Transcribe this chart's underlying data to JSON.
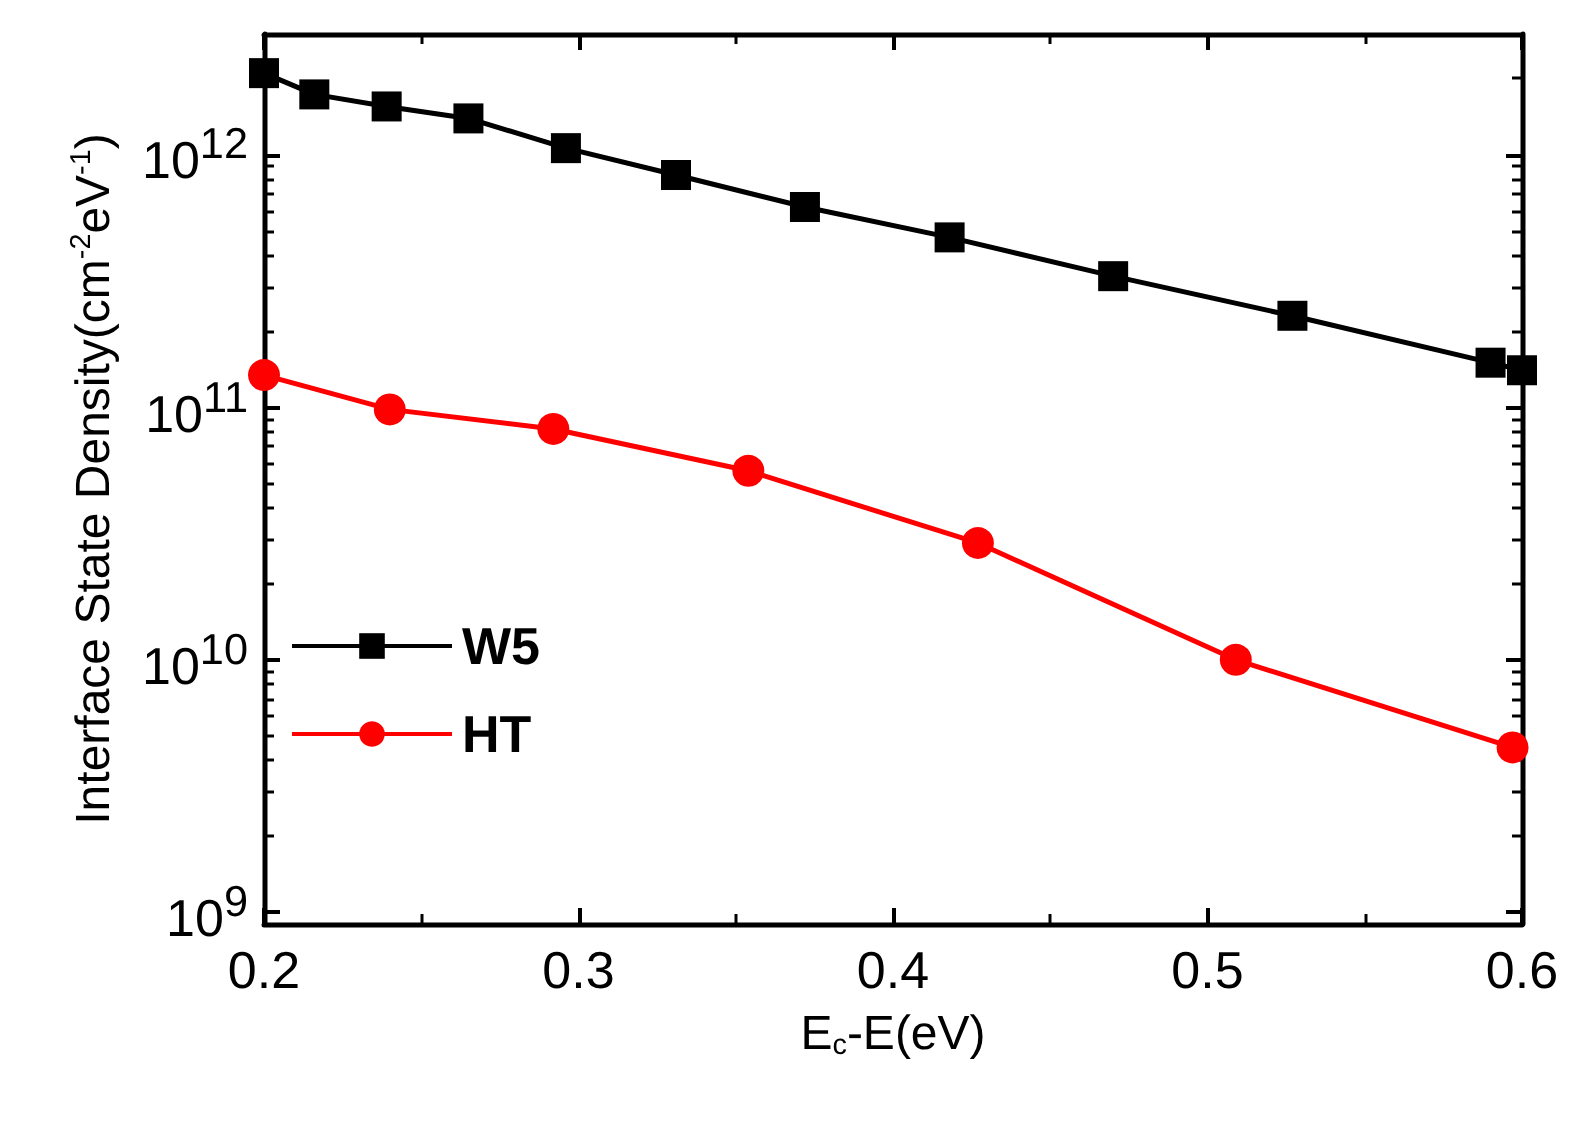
{
  "chart_data": {
    "type": "line",
    "xlabel": "E$_{c}$-E(eV)",
    "ylabel": "Interface State Density(cm$^{-2}$eV$^{-1}$)",
    "log": "y",
    "xlim": [
      0.2,
      0.6
    ],
    "xticks": [
      0.2,
      0.3,
      0.4,
      0.5,
      0.6
    ],
    "ylim": [
      900000000.0,
      3000000000000.0
    ],
    "yticks": [
      {
        "value": 1000000000.0,
        "label": "10$^{9}$"
      },
      {
        "value": 10000000000.0,
        "label": "10$^{10}$"
      },
      {
        "value": 100000000000.0,
        "label": "10$^{11}$"
      },
      {
        "value": 1000000000000.0,
        "label": "10$^{12}$"
      }
    ],
    "grid": false,
    "legend": "left",
    "line_style": "solid",
    "series": [
      {
        "name": "W5",
        "color": "#000000",
        "marker": "square",
        "x": [
          0.2,
          0.216,
          0.239,
          0.265,
          0.296,
          0.331,
          0.372,
          0.418,
          0.47,
          0.527,
          0.59,
          0.6
        ],
        "values": [
          2100000000000.0,
          1730000000000.0,
          1550000000000.0,
          1390000000000.0,
          1060000000000.0,
          830000000000.0,
          620000000000.0,
          470000000000.0,
          330000000000.0,
          230000000000.0,
          150000000000.0,
          140000000000.0
        ]
      },
      {
        "name": "HT",
        "color": "#ff0000",
        "marker": "circle",
        "x": [
          0.2,
          0.24,
          0.292,
          0.354,
          0.427,
          0.509,
          0.597
        ],
        "values": [
          134000000000.0,
          98000000000.0,
          82000000000.0,
          56000000000.0,
          29000000000.0,
          10000000000.0,
          4500000000.0
        ]
      }
    ]
  }
}
